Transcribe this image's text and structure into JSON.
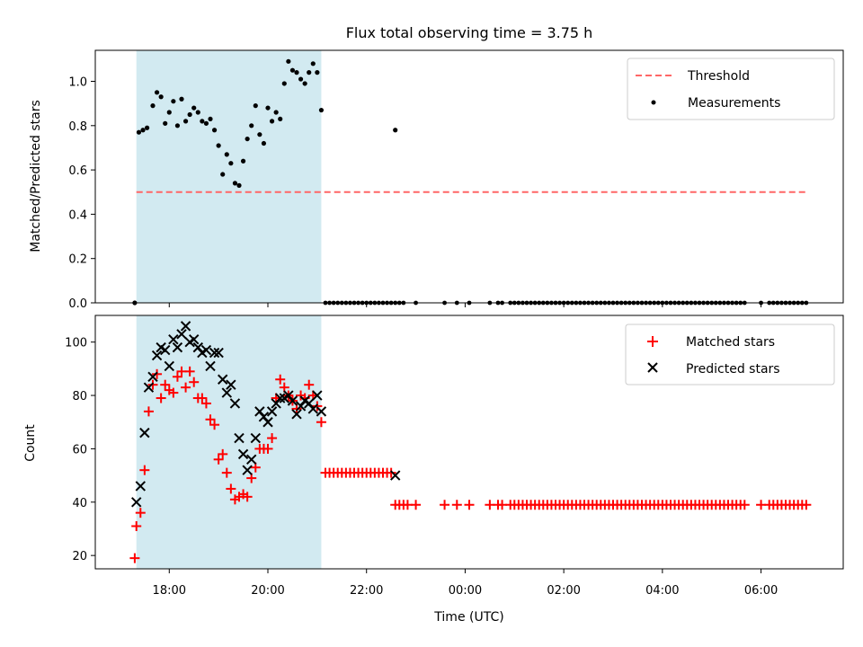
{
  "chart_data": [
    {
      "type": "scatter",
      "title": "Flux total observing time = 3.75 h",
      "xlabel": "",
      "ylabel": "Matched/Predicted stars",
      "xlim": [
        "16:30",
        "07:40"
      ],
      "ylim": [
        0,
        1.14
      ],
      "yticks": [
        "0.0",
        "0.2",
        "0.4",
        "0.6",
        "0.8",
        "1.0"
      ],
      "grid": false,
      "legend": "top-right",
      "shaded_interval": {
        "start": "17:20",
        "end": "21:05",
        "color": "#add8e6"
      },
      "threshold": {
        "name": "Threshold",
        "value": 0.5,
        "x_start": "17:20",
        "x_end": "06:55",
        "color": "#ff6666",
        "style": "dashed"
      },
      "series": [
        {
          "name": "Measurements",
          "color": "#000000",
          "marker": "dot",
          "x": [
            "17:18",
            "17:23",
            "17:28",
            "17:33",
            "17:40",
            "17:45",
            "17:50",
            "17:55",
            "18:00",
            "18:05",
            "18:10",
            "18:15",
            "18:20",
            "18:25",
            "18:30",
            "18:35",
            "18:40",
            "18:45",
            "18:50",
            "18:55",
            "19:00",
            "19:05",
            "19:10",
            "19:15",
            "19:20",
            "19:25",
            "19:30",
            "19:35",
            "19:40",
            "19:45",
            "19:50",
            "19:55",
            "20:00",
            "20:05",
            "20:10",
            "20:15",
            "20:20",
            "20:25",
            "20:30",
            "20:35",
            "20:40",
            "20:45",
            "20:50",
            "20:55",
            "21:00",
            "21:05",
            "22:35"
          ],
          "y": [
            0.0,
            0.77,
            0.78,
            0.79,
            0.89,
            0.95,
            0.93,
            0.81,
            0.86,
            0.91,
            0.8,
            0.92,
            0.82,
            0.85,
            0.88,
            0.86,
            0.82,
            0.81,
            0.83,
            0.78,
            0.71,
            0.58,
            0.67,
            0.63,
            0.54,
            0.53,
            0.64,
            0.74,
            0.8,
            0.89,
            0.76,
            0.72,
            0.88,
            0.82,
            0.86,
            0.83,
            0.99,
            1.09,
            1.05,
            1.04,
            1.01,
            0.99,
            1.04,
            1.08,
            1.04,
            0.87,
            0.78
          ]
        },
        {
          "name": "",
          "color": "#000000",
          "marker": "dot",
          "zeros_at": [
            "21:10",
            "21:15",
            "21:20",
            "21:25",
            "21:30",
            "21:35",
            "21:40",
            "21:45",
            "21:50",
            "21:55",
            "22:00",
            "22:05",
            "22:10",
            "22:15",
            "22:20",
            "22:25",
            "22:30",
            "22:35",
            "22:40",
            "22:45",
            "23:00",
            "23:35",
            "23:50",
            "00:05",
            "00:30",
            "00:40",
            "00:45",
            "00:55",
            "01:00",
            "01:05",
            "01:10",
            "01:15",
            "01:20",
            "01:25",
            "01:30",
            "01:35",
            "01:40",
            "01:45",
            "01:50",
            "01:55",
            "02:00",
            "02:05",
            "02:10",
            "02:15",
            "02:20",
            "02:25",
            "02:30",
            "02:35",
            "02:40",
            "02:45",
            "02:50",
            "02:55",
            "03:00",
            "03:05",
            "03:10",
            "03:15",
            "03:20",
            "03:25",
            "03:30",
            "03:35",
            "03:40",
            "03:45",
            "03:50",
            "03:55",
            "04:00",
            "04:05",
            "04:10",
            "04:15",
            "04:20",
            "04:25",
            "04:30",
            "04:35",
            "04:40",
            "04:45",
            "04:50",
            "04:55",
            "05:00",
            "05:05",
            "05:10",
            "05:15",
            "05:20",
            "05:25",
            "05:30",
            "05:35",
            "05:40",
            "06:00",
            "06:10",
            "06:15",
            "06:20",
            "06:25",
            "06:30",
            "06:35",
            "06:40",
            "06:45",
            "06:50",
            "06:55"
          ]
        }
      ]
    },
    {
      "type": "scatter",
      "title": "",
      "xlabel": "Time (UTC)",
      "ylabel": "Count",
      "xticks": [
        "18:00",
        "20:00",
        "22:00",
        "00:00",
        "02:00",
        "04:00",
        "06:00"
      ],
      "yticks": [
        "20",
        "40",
        "60",
        "80",
        "100"
      ],
      "xlim": [
        "16:30",
        "07:40"
      ],
      "ylim": [
        15,
        110
      ],
      "grid": false,
      "legend": "top-right",
      "shaded_interval": {
        "start": "17:20",
        "end": "21:05",
        "color": "#add8e6"
      },
      "series": [
        {
          "name": "Matched stars",
          "color": "#ff0000",
          "marker": "plus",
          "x": [
            "17:18",
            "17:20",
            "17:25",
            "17:30",
            "17:35",
            "17:40",
            "17:45",
            "17:50",
            "17:55",
            "18:00",
            "18:05",
            "18:10",
            "18:15",
            "18:20",
            "18:25",
            "18:30",
            "18:35",
            "18:40",
            "18:45",
            "18:50",
            "18:55",
            "19:00",
            "19:05",
            "19:10",
            "19:15",
            "19:20",
            "19:25",
            "19:30",
            "19:35",
            "19:40",
            "19:45",
            "19:50",
            "19:55",
            "20:00",
            "20:05",
            "20:10",
            "20:15",
            "20:20",
            "20:25",
            "20:30",
            "20:35",
            "20:40",
            "20:45",
            "20:50",
            "20:55",
            "21:00",
            "21:05",
            "21:10",
            "21:15",
            "21:20",
            "21:25",
            "21:30",
            "21:35",
            "21:40",
            "21:45",
            "21:50",
            "21:55",
            "22:00",
            "22:05",
            "22:10",
            "22:15",
            "22:20",
            "22:25",
            "22:30",
            "22:35"
          ],
          "y": [
            19,
            31,
            36,
            52,
            74,
            84,
            88,
            79,
            84,
            82,
            81,
            87,
            89,
            83,
            89,
            85,
            79,
            79,
            77,
            71,
            69,
            56,
            58,
            51,
            45,
            41,
            42,
            43,
            42,
            49,
            53,
            60,
            60,
            60,
            64,
            79,
            86,
            83,
            80,
            78,
            75,
            80,
            79,
            84,
            80,
            76,
            70,
            51,
            51,
            51,
            51,
            51,
            51,
            51,
            51,
            51,
            51,
            51,
            51,
            51,
            51,
            51,
            51,
            51,
            39
          ]
        },
        {
          "name": "",
          "color": "#ff0000",
          "marker": "plus",
          "y_value": 39,
          "x": [
            "22:40",
            "22:45",
            "22:50",
            "23:00",
            "23:35",
            "23:50",
            "00:05",
            "00:30",
            "00:40",
            "00:45",
            "00:55",
            "01:00",
            "01:05",
            "01:10",
            "01:15",
            "01:20",
            "01:25",
            "01:30",
            "01:35",
            "01:40",
            "01:45",
            "01:50",
            "01:55",
            "02:00",
            "02:05",
            "02:10",
            "02:15",
            "02:20",
            "02:25",
            "02:30",
            "02:35",
            "02:40",
            "02:45",
            "02:50",
            "02:55",
            "03:00",
            "03:05",
            "03:10",
            "03:15",
            "03:20",
            "03:25",
            "03:30",
            "03:35",
            "03:40",
            "03:45",
            "03:50",
            "03:55",
            "04:00",
            "04:05",
            "04:10",
            "04:15",
            "04:20",
            "04:25",
            "04:30",
            "04:35",
            "04:40",
            "04:45",
            "04:50",
            "04:55",
            "05:00",
            "05:05",
            "05:10",
            "05:15",
            "05:20",
            "05:25",
            "05:30",
            "05:35",
            "05:40",
            "06:00",
            "06:10",
            "06:15",
            "06:20",
            "06:25",
            "06:30",
            "06:35",
            "06:40",
            "06:45",
            "06:50",
            "06:55"
          ]
        },
        {
          "name": "Predicted stars",
          "color": "#000000",
          "marker": "x",
          "x": [
            "17:20",
            "17:25",
            "17:30",
            "17:35",
            "17:40",
            "17:45",
            "17:50",
            "17:55",
            "18:00",
            "18:05",
            "18:10",
            "18:15",
            "18:20",
            "18:25",
            "18:30",
            "18:35",
            "18:40",
            "18:45",
            "18:50",
            "18:55",
            "19:00",
            "19:05",
            "19:10",
            "19:15",
            "19:20",
            "19:25",
            "19:30",
            "19:35",
            "19:40",
            "19:45",
            "19:50",
            "19:55",
            "20:00",
            "20:05",
            "20:10",
            "20:15",
            "20:20",
            "20:25",
            "20:30",
            "20:35",
            "20:40",
            "20:45",
            "20:50",
            "20:55",
            "21:00",
            "21:05",
            "22:35"
          ],
          "y": [
            40,
            46,
            66,
            83,
            87,
            95,
            98,
            97,
            91,
            101,
            98,
            103,
            106,
            100,
            101,
            98,
            96,
            97,
            91,
            96,
            96,
            86,
            81,
            84,
            77,
            64,
            58,
            52,
            56,
            64,
            74,
            72,
            70,
            74,
            77,
            79,
            79,
            80,
            78,
            73,
            76,
            78,
            77,
            75,
            80,
            74,
            50
          ]
        }
      ]
    }
  ]
}
